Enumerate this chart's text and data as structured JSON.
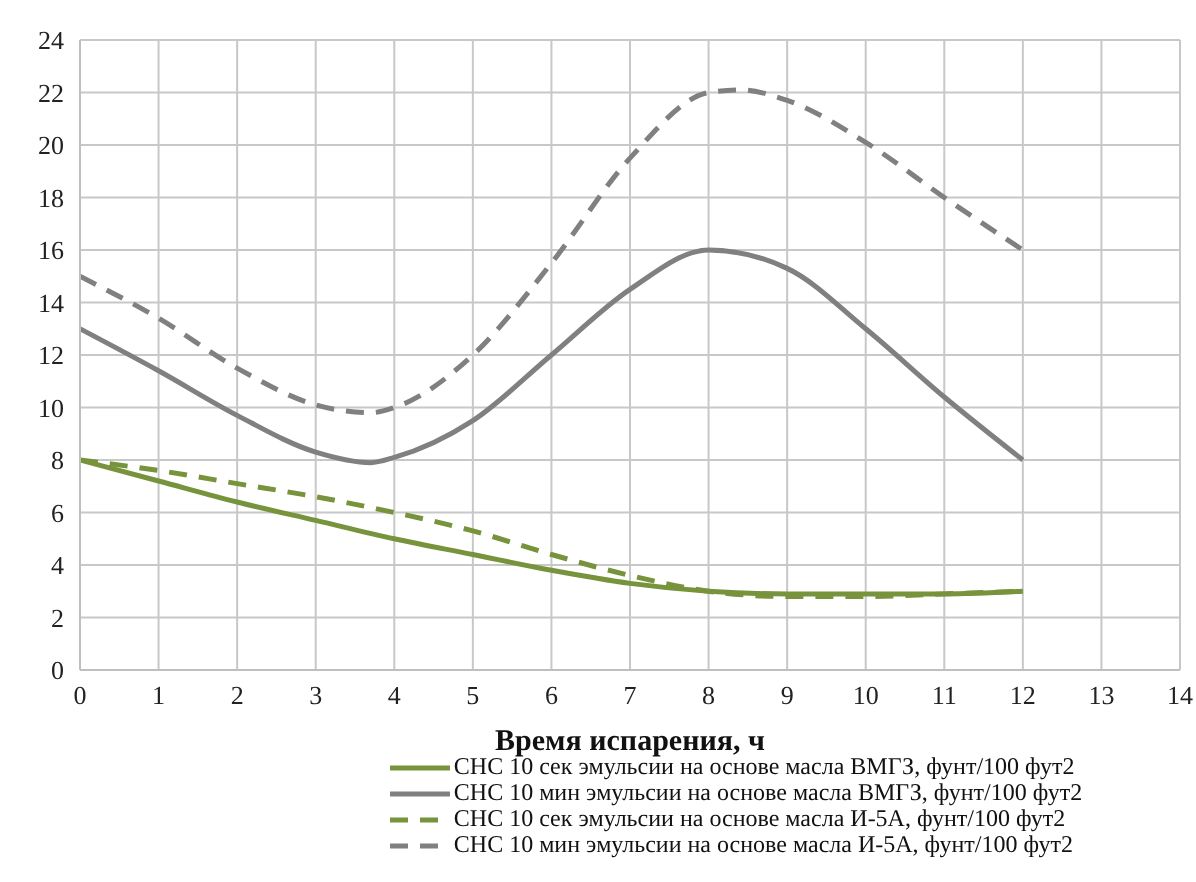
{
  "chart_data": {
    "type": "line",
    "xlabel": "Время испарения, ч",
    "xlim": [
      0,
      14
    ],
    "xticks": [
      0,
      1,
      2,
      3,
      4,
      5,
      6,
      7,
      8,
      9,
      10,
      11,
      12,
      13,
      14
    ],
    "ylim": [
      0,
      24
    ],
    "yticks": [
      0,
      2,
      4,
      6,
      8,
      10,
      12,
      14,
      16,
      18,
      20,
      22,
      24
    ],
    "grid": true,
    "legend": "bottom",
    "marker": "none",
    "series": [
      {
        "name": "СНС 10 сек эмульсии на основе масла ВМГЗ, фунт/100 фут2",
        "color": "#77933c",
        "line_style": "solid",
        "x": [
          0,
          1,
          2,
          3,
          4,
          5,
          6,
          7,
          8,
          9,
          10,
          11,
          12
        ],
        "values": [
          8,
          7.2,
          6.4,
          5.7,
          5,
          4.4,
          3.8,
          3.3,
          3,
          2.9,
          2.9,
          2.9,
          3
        ]
      },
      {
        "name": "СНС 10 мин эмульсии на основе масла ВМГЗ, фунт/100 фут2",
        "color": "#808080",
        "line_style": "solid",
        "x": [
          0,
          1,
          2,
          3,
          3.7,
          4,
          5,
          6,
          7,
          8,
          9,
          10,
          11,
          12
        ],
        "values": [
          13,
          11.4,
          9.7,
          8.3,
          7.9,
          8.1,
          9.5,
          12,
          14.5,
          16,
          15.3,
          13,
          10.4,
          8
        ]
      },
      {
        "name": "СНС 10 сек эмульсии на основе масла И-5А, фунт/100 фут2",
        "color": "#77933c",
        "line_style": "dashed",
        "x": [
          0,
          1,
          2,
          3,
          4,
          5,
          6,
          7,
          8,
          9,
          10,
          11,
          12
        ],
        "values": [
          8,
          7.6,
          7.1,
          6.6,
          6,
          5.3,
          4.4,
          3.6,
          3,
          2.8,
          2.8,
          2.9,
          3
        ]
      },
      {
        "name": "СНС 10 мин эмульсии на основе масла И-5А, фунт/100 фут2",
        "color": "#808080",
        "line_style": "dashed",
        "x": [
          0,
          1,
          2,
          3,
          3.7,
          4,
          5,
          6,
          7,
          8,
          8.4,
          9,
          10,
          11,
          12
        ],
        "values": [
          15,
          13.4,
          11.5,
          10.1,
          9.8,
          10,
          12,
          15.5,
          19.5,
          22,
          22.1,
          21.7,
          20.1,
          18,
          16
        ]
      }
    ]
  }
}
